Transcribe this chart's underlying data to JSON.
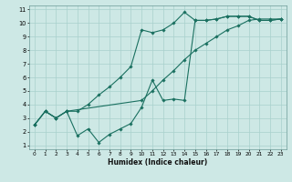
{
  "xlabel": "Humidex (Indice chaleur)",
  "xlim": [
    -0.5,
    23.5
  ],
  "ylim": [
    0.7,
    11.3
  ],
  "xticks": [
    0,
    1,
    2,
    3,
    4,
    5,
    6,
    7,
    8,
    9,
    10,
    11,
    12,
    13,
    14,
    15,
    16,
    17,
    18,
    19,
    20,
    21,
    22,
    23
  ],
  "yticks": [
    1,
    2,
    3,
    4,
    5,
    6,
    7,
    8,
    9,
    10,
    11
  ],
  "bg_color": "#cde8e5",
  "grid_color": "#a8d0cc",
  "line_color": "#1a7060",
  "line1_x": [
    0,
    1,
    2,
    3,
    4,
    5,
    6,
    7,
    8,
    9,
    10,
    11,
    12,
    13,
    14,
    15,
    16,
    17,
    18,
    19,
    20,
    21,
    22,
    23
  ],
  "line1_y": [
    2.5,
    3.5,
    3.0,
    3.5,
    3.5,
    4.0,
    4.7,
    5.3,
    6.0,
    6.8,
    9.5,
    9.3,
    9.5,
    10.0,
    10.8,
    10.2,
    10.2,
    10.3,
    10.5,
    10.5,
    10.5,
    10.2,
    10.2,
    10.3
  ],
  "line2_x": [
    0,
    1,
    2,
    3,
    10,
    11,
    12,
    13,
    14,
    15,
    16,
    17,
    18,
    19,
    20,
    21,
    22,
    23
  ],
  "line2_y": [
    2.5,
    3.5,
    3.0,
    3.5,
    4.3,
    5.0,
    5.8,
    6.5,
    7.3,
    8.0,
    8.5,
    9.0,
    9.5,
    9.8,
    10.2,
    10.3,
    10.3,
    10.3
  ],
  "line3_x": [
    0,
    1,
    2,
    3,
    4,
    5,
    6,
    7,
    8,
    9,
    10,
    11,
    12,
    13,
    14,
    15,
    16,
    17,
    18,
    19,
    20,
    21,
    22,
    23
  ],
  "line3_y": [
    2.5,
    3.5,
    3.0,
    3.5,
    1.7,
    2.2,
    1.2,
    1.8,
    2.2,
    2.6,
    3.8,
    5.8,
    4.3,
    4.4,
    4.3,
    10.2,
    10.2,
    10.3,
    10.5,
    10.5,
    10.5,
    10.2,
    10.2,
    10.3
  ]
}
